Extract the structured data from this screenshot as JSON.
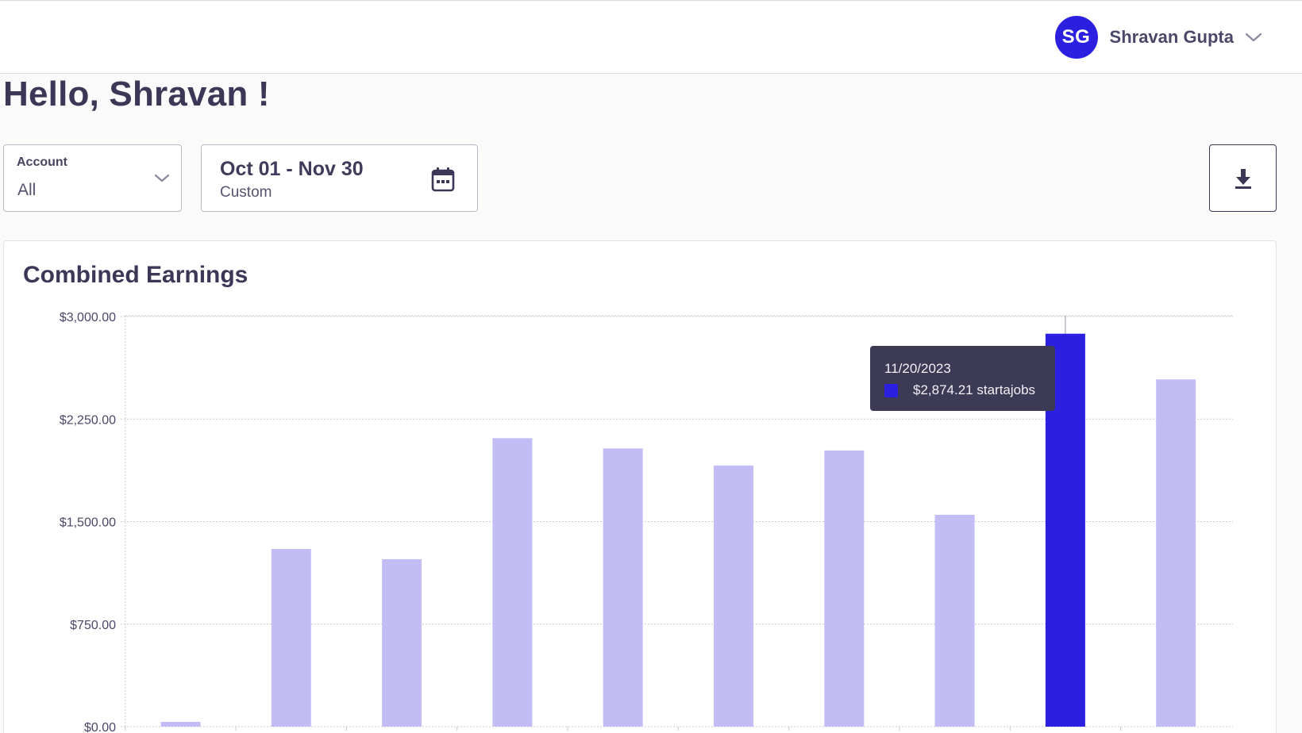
{
  "header": {
    "user": {
      "initials": "SG",
      "name": "Shravan Gupta"
    }
  },
  "greeting": "Hello, Shravan !",
  "filters": {
    "account": {
      "label": "Account",
      "value": "All"
    },
    "date_range": {
      "value": "Oct 01 - Nov 30",
      "preset": "Custom"
    }
  },
  "chart_card": {
    "title": "Combined Earnings",
    "tooltip": {
      "date": "11/20/2023",
      "value_text": "$2,874.21 startajobs"
    }
  },
  "chart_data": {
    "type": "bar",
    "title": "Combined Earnings",
    "y_tick_labels": [
      "$0.00",
      "$750.00",
      "$1,500.00",
      "$2,250.00",
      "$3,000.00"
    ],
    "y_ticks": [
      0,
      750,
      1500,
      2250,
      3000
    ],
    "ylim": [
      0,
      3000
    ],
    "categories": [
      "",
      "",
      "",
      "",
      "",
      "",
      "",
      "",
      "",
      ""
    ],
    "series": [
      {
        "values": [
          35,
          1300,
          1225,
          2110,
          2035,
          1910,
          2020,
          1550,
          2874.21,
          2540
        ]
      }
    ],
    "highlight_index": 8,
    "colors": {
      "bar": "#c2bdf5",
      "bar_highlight": "#2c20e0",
      "grid": "#c9c9d2",
      "axis_text": "#4a4868"
    },
    "grid": true
  },
  "icons": {
    "user_menu": "chevron-down-icon",
    "account": "chevron-down-icon",
    "date": "calendar-icon",
    "download": "download-icon"
  }
}
